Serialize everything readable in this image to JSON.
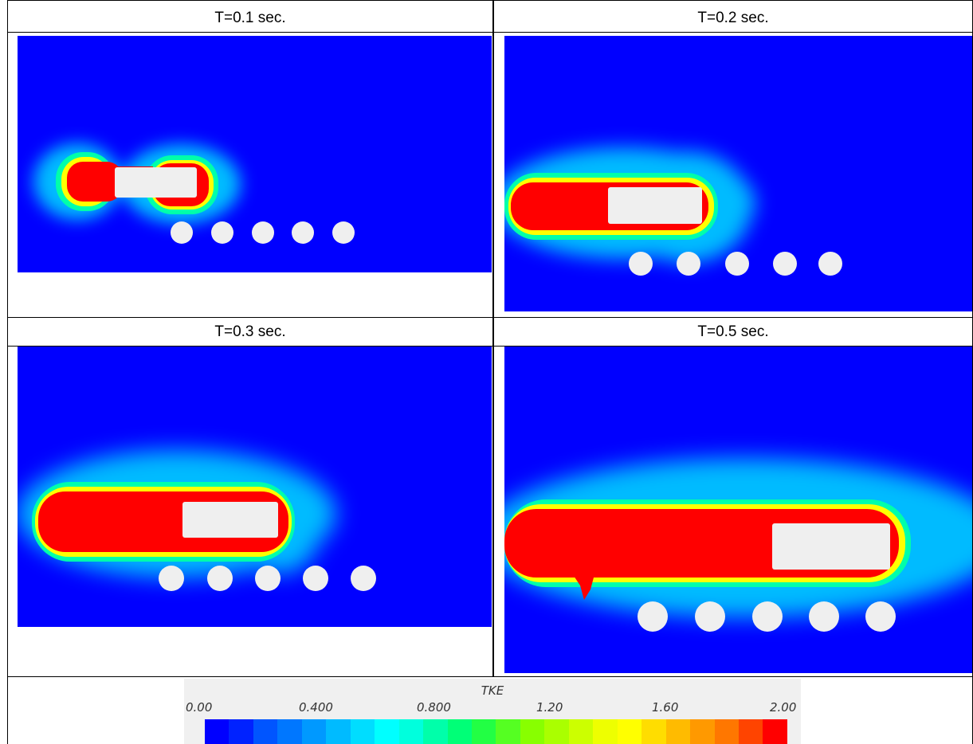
{
  "panels": [
    {
      "caption": "T=0.1 sec."
    },
    {
      "caption": "T=0.2 sec."
    },
    {
      "caption": "T=0.3 sec."
    },
    {
      "caption": "T=0.5 sec."
    }
  ],
  "colorbar": {
    "title": "TKE",
    "ticks": [
      "0.00",
      "0.400",
      "0.800",
      "1.20",
      "1.60",
      "2.00"
    ],
    "range": [
      0.0,
      2.0
    ],
    "colors": [
      "#0000ff",
      "#0022ff",
      "#0055ff",
      "#0077ff",
      "#0099ff",
      "#00bbff",
      "#00ddff",
      "#00ffff",
      "#00ffdd",
      "#00ffaa",
      "#00ff77",
      "#22ff44",
      "#55ff22",
      "#88ff00",
      "#aaff00",
      "#ccff00",
      "#eeff00",
      "#ffff00",
      "#ffdd00",
      "#ffbb00",
      "#ff9900",
      "#ff7700",
      "#ff4400",
      "#ff0000"
    ]
  },
  "colors": {
    "background_field": "#0000ff",
    "obstacle": "#efefef",
    "high_tke": "#ff0000"
  }
}
